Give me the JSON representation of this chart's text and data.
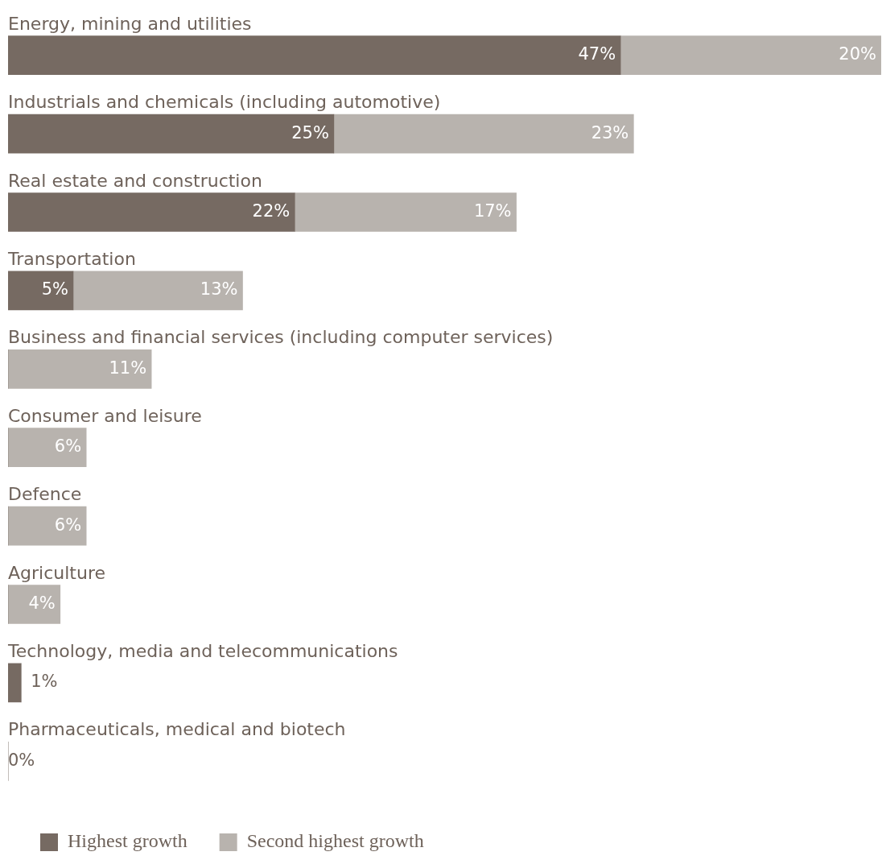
{
  "chart_data": {
    "type": "bar",
    "orientation": "horizontal",
    "stacked": true,
    "categories": [
      "Energy, mining and utilities",
      "Industrials and chemicals (including automotive)",
      "Real estate and construction",
      "Transportation",
      "Business and financial services (including computer services)",
      "Consumer and leisure",
      "Defence",
      "Agriculture",
      "Technology, media and telecommunications",
      "Pharmaceuticals, medical and biotech"
    ],
    "series": [
      {
        "name": "Highest growth",
        "color": "#766a62",
        "values": [
          47,
          25,
          22,
          5,
          0,
          0,
          0,
          0,
          1,
          0
        ],
        "value_labels": [
          "47%",
          "25%",
          "22%",
          "5%",
          null,
          null,
          null,
          null,
          "1%",
          "0%"
        ]
      },
      {
        "name": "Second highest growth",
        "color": "#b8b3ae",
        "values": [
          20,
          23,
          17,
          13,
          11,
          6,
          6,
          4,
          0,
          0
        ],
        "value_labels": [
          "20%",
          "23%",
          "17%",
          "13%",
          "11%",
          "6%",
          "6%",
          "4%",
          null,
          null
        ]
      }
    ],
    "xlim": [
      0,
      67
    ],
    "tick_labels": false,
    "legend": "bottom left"
  }
}
